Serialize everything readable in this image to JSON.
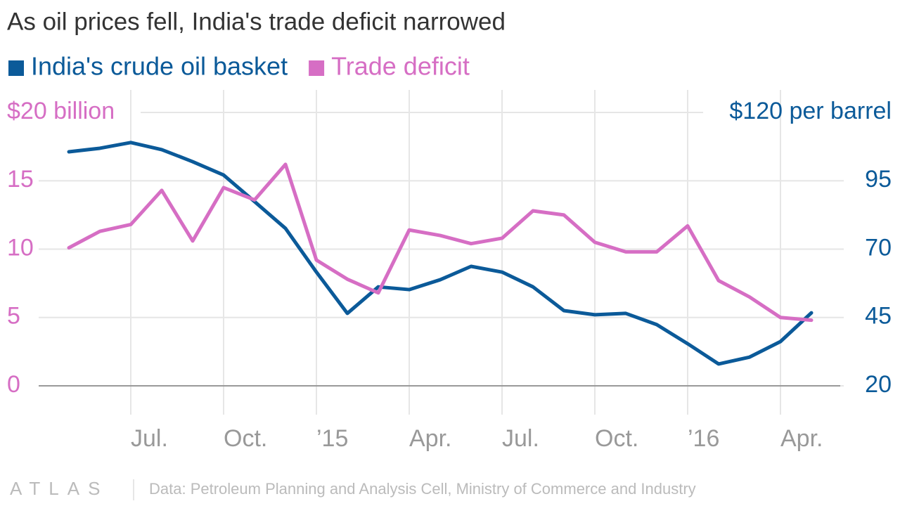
{
  "chart_data": {
    "type": "line",
    "title": "As oil prices fell, India's trade deficit narrowed",
    "x": [
      "2014-05",
      "2014-06",
      "2014-07",
      "2014-08",
      "2014-09",
      "2014-10",
      "2014-11",
      "2014-12",
      "2015-01",
      "2015-02",
      "2015-03",
      "2015-04",
      "2015-05",
      "2015-06",
      "2015-07",
      "2015-08",
      "2015-09",
      "2015-10",
      "2015-11",
      "2015-12",
      "2016-01",
      "2016-02",
      "2016-03",
      "2016-04",
      "2016-05"
    ],
    "xticks": [
      {
        "value": "2014-07",
        "label": "Jul."
      },
      {
        "value": "2014-10",
        "label": "Oct."
      },
      {
        "value": "2015-01",
        "label": "’15"
      },
      {
        "value": "2015-04",
        "label": "Apr."
      },
      {
        "value": "2015-07",
        "label": "Jul."
      },
      {
        "value": "2015-10",
        "label": "Oct."
      },
      {
        "value": "2016-01",
        "label": "’16"
      },
      {
        "value": "2016-04",
        "label": "Apr."
      }
    ],
    "series": [
      {
        "name": "India's crude oil basket",
        "color": "#0b5a99",
        "axis": "y2",
        "values": [
          105.6,
          106.9,
          109,
          106.4,
          102,
          97.1,
          87.4,
          77.6,
          61.6,
          46.5,
          56.2,
          55.2,
          58.8,
          63.7,
          61.6,
          56.2,
          47.5,
          46,
          46.5,
          42.4,
          35.4,
          28,
          30.5,
          36.2,
          46.7
        ]
      },
      {
        "name": "Trade deficit",
        "color": "#d66ec4",
        "values": [
          10.1,
          11.3,
          11.8,
          14.3,
          10.6,
          14.5,
          13.6,
          16.2,
          9.2,
          7.8,
          6.8,
          11.4,
          11.0,
          10.4,
          10.8,
          12.8,
          12.5,
          10.5,
          9.8,
          9.8,
          11.7,
          7.7,
          6.5,
          5.0,
          4.8
        ]
      }
    ],
    "ylim": [
      0,
      20
    ],
    "yticks": [
      0,
      5,
      10,
      15,
      {
        "value": 20,
        "label": "$20 billion"
      }
    ],
    "y2lim": [
      20,
      120
    ],
    "y2ticks": [
      20,
      45,
      70,
      95,
      {
        "value": 120,
        "label": "$120 per barrel"
      }
    ],
    "grid": true,
    "logo": "ATLAS",
    "source": "Data: Petroleum Planning and Analysis Cell, Ministry of Commerce and Industry"
  }
}
